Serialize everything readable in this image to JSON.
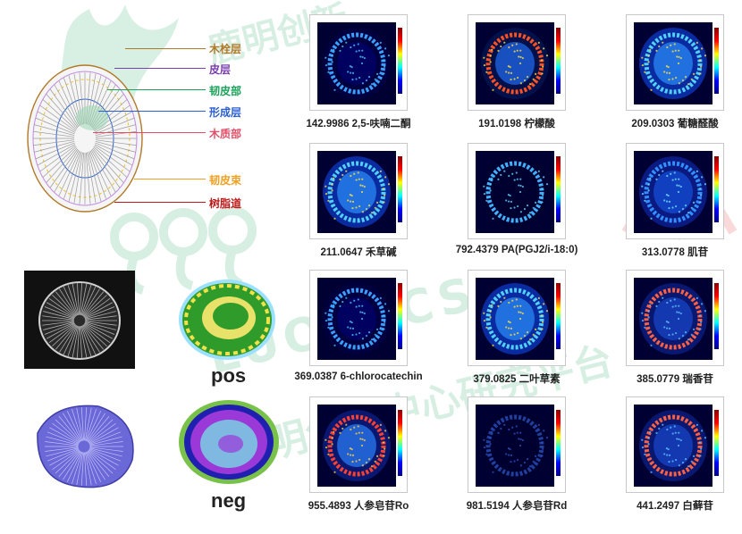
{
  "watermark": {
    "brand_cn": "鹿明创新",
    "brand_en": "LUOMICS",
    "center_cn": "鹿明创新中心研究平台"
  },
  "legend": [
    {
      "label": "木栓层",
      "color": "#b07a2a"
    },
    {
      "label": "皮层",
      "color": "#7b3fb0"
    },
    {
      "label": "韧皮部",
      "color": "#1aa35a"
    },
    {
      "label": "形成层",
      "color": "#2b5fd0"
    },
    {
      "label": "木质部",
      "color": "#e0506a"
    },
    {
      "label": "韧皮束",
      "color": "#f0a020"
    },
    {
      "label": "树脂道",
      "color": "#c01818"
    }
  ],
  "mode_labels": {
    "pos": "pos",
    "neg": "neg"
  },
  "panels": [
    {
      "caption": "142.9986 2,5-呋喃二酮",
      "style": "ring-sparse"
    },
    {
      "caption": "191.0198 柠檬酸",
      "style": "ring-hot"
    },
    {
      "caption": "209.0303 葡糖醛酸",
      "style": "disc-bright"
    },
    {
      "caption": "211.0647 禾草碱",
      "style": "disc-bright"
    },
    {
      "caption": "792.4379 PA(PGJ2/i-18:0)",
      "style": "ring-thin"
    },
    {
      "caption": "313.0778 肌苷",
      "style": "disc-mid"
    },
    {
      "caption": "369.0387 6-chlorocatechin",
      "style": "ring-sparse"
    },
    {
      "caption": "379.0825 二叶草素",
      "style": "disc-bright"
    },
    {
      "caption": "385.0779 瑞香苷",
      "style": "disc-edge"
    },
    {
      "caption": "955.4893 人参皂苷Ro",
      "style": "disc-mixed"
    },
    {
      "caption": "981.5194 人参皂苷Rd",
      "style": "ring-faint"
    },
    {
      "caption": "441.2497 白藓苷",
      "style": "disc-edge"
    }
  ]
}
